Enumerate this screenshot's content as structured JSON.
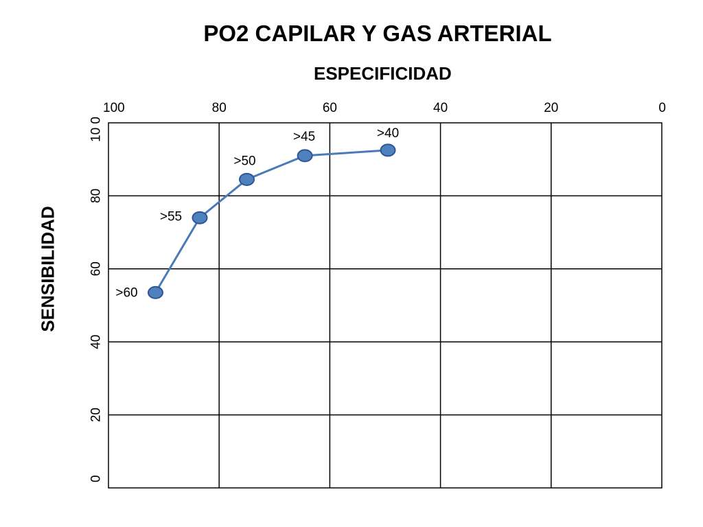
{
  "chart_data": {
    "type": "line",
    "title": "PO2 CAPILAR Y GAS ARTERIAL",
    "xlabel": "ESPECIFICIDAD",
    "ylabel": "SENSIBILIDAD",
    "xlim": [
      100,
      0
    ],
    "ylim": [
      0,
      100
    ],
    "x_reversed": true,
    "x_ticks": [
      "100",
      "80",
      "60",
      "40",
      "20",
      "0"
    ],
    "y_ticks": [
      "0",
      "20",
      "40",
      "60",
      "80",
      "10 0"
    ],
    "grid": true,
    "line_color": "#4a7ab8",
    "marker_color": "#4f81bd",
    "marker_edge_color": "#2f5597",
    "points": [
      {
        "label": ">60",
        "x": 91.5,
        "y": 53.5
      },
      {
        "label": ">55",
        "x": 83.5,
        "y": 74
      },
      {
        "label": ">50",
        "x": 75,
        "y": 84.5
      },
      {
        "label": ">45",
        "x": 64.5,
        "y": 91
      },
      {
        "label": ">40",
        "x": 49.5,
        "y": 92.5
      }
    ]
  }
}
